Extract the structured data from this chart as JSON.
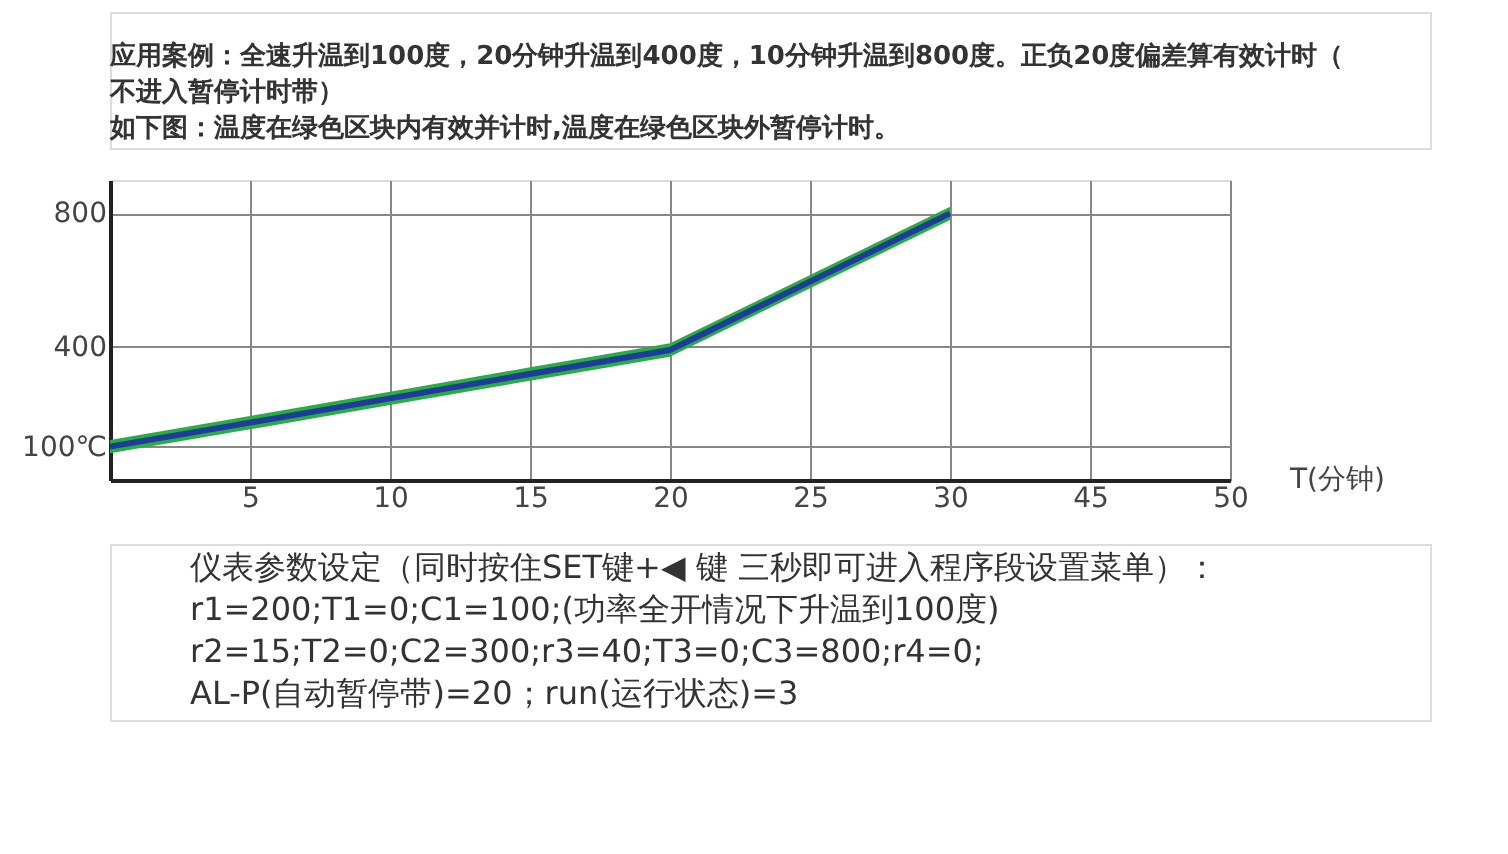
{
  "chart_data": {
    "type": "line",
    "xlabel": "T(分钟)",
    "categories": [
      null,
      "5",
      "10",
      "15",
      "20",
      "25",
      "30",
      "45",
      "50"
    ],
    "ylim": [
      0,
      900
    ],
    "yticks": [
      {
        "value": 100,
        "label": "100℃"
      },
      400,
      800
    ],
    "series": [
      {
        "color": "#1c3f94",
        "values": [
          100,
          172,
          245,
          318,
          390,
          595,
          800,
          null,
          null
        ],
        "lower": [
          80,
          152,
          225,
          298,
          370,
          575,
          780,
          null,
          null
        ],
        "upper": [
          120,
          192,
          265,
          338,
          410,
          615,
          820,
          null,
          null
        ]
      }
    ],
    "annotations": [
      "应用案例：全速升温到100度，20分钟升温到400度，10分钟升温到800度。正负20度偏差算有效计时（不进入暂停计时带）",
      "如下图：温度在绿色区块内有效并计时,温度在绿色区块外暂停计时。",
      "仪表参数设定（同时按住SET键+◀ 键 三秒即可进入程序段设置菜单）：",
      "r1=200;T1=0;C1=100;(功率全开情况下升温到100度)",
      "r2=15;T2=0;C2=300;r3=40;T3=0;C3=800;r4=0;",
      "AL-P(自动暂停带)=20；run(运行状态)=3"
    ],
    "grid": true,
    "marker": "none",
    "line_style": "solid"
  }
}
